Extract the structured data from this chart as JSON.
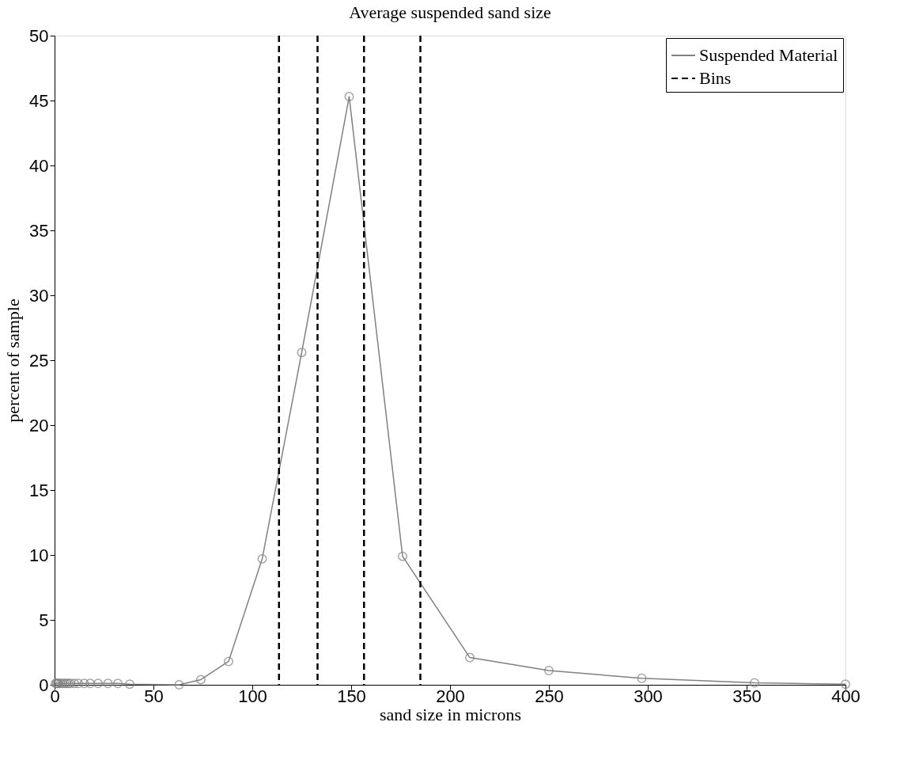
{
  "chart_data": {
    "type": "line",
    "title": "Average suspended sand size",
    "xlabel": "sand size in microns",
    "ylabel": "percent of sample",
    "xlim": [
      0,
      400
    ],
    "xticks": [
      0,
      50,
      100,
      150,
      200,
      250,
      300,
      350,
      400
    ],
    "ylim": [
      0,
      50
    ],
    "yticks": [
      0,
      5,
      10,
      15,
      20,
      25,
      30,
      35,
      40,
      45,
      50
    ],
    "grid": false,
    "legend": "top right",
    "marker": "circle",
    "line_style": "solid",
    "series": [
      {
        "name": "Suspended Material",
        "color": "#808080",
        "x": [
          0.5,
          1,
          1.5,
          2,
          3,
          4,
          5,
          6,
          7,
          8,
          10,
          12,
          15,
          18,
          22,
          27,
          32,
          38,
          63,
          74,
          88,
          105,
          125,
          149,
          176,
          210,
          250,
          297,
          354,
          400
        ],
        "values": [
          0.1,
          0.1,
          0.1,
          0.1,
          0.1,
          0.1,
          0.1,
          0.1,
          0.1,
          0.1,
          0.1,
          0.1,
          0.1,
          0.1,
          0.1,
          0.1,
          0.1,
          0.05,
          0.0,
          0.4,
          1.8,
          9.7,
          25.6,
          45.3,
          9.9,
          2.1,
          1.1,
          0.5,
          0.15,
          0.05
        ]
      }
    ],
    "ref_lines": [
      {
        "axis": "x",
        "value": 113.5,
        "label": "Bins",
        "color": "#000000",
        "line_style": "dashed"
      },
      {
        "axis": "x",
        "value": 133,
        "color": "#000000",
        "line_style": "dashed"
      },
      {
        "axis": "x",
        "value": 156.5,
        "color": "#000000",
        "line_style": "dashed"
      },
      {
        "axis": "x",
        "value": 185,
        "color": "#000000",
        "line_style": "dashed"
      }
    ]
  }
}
